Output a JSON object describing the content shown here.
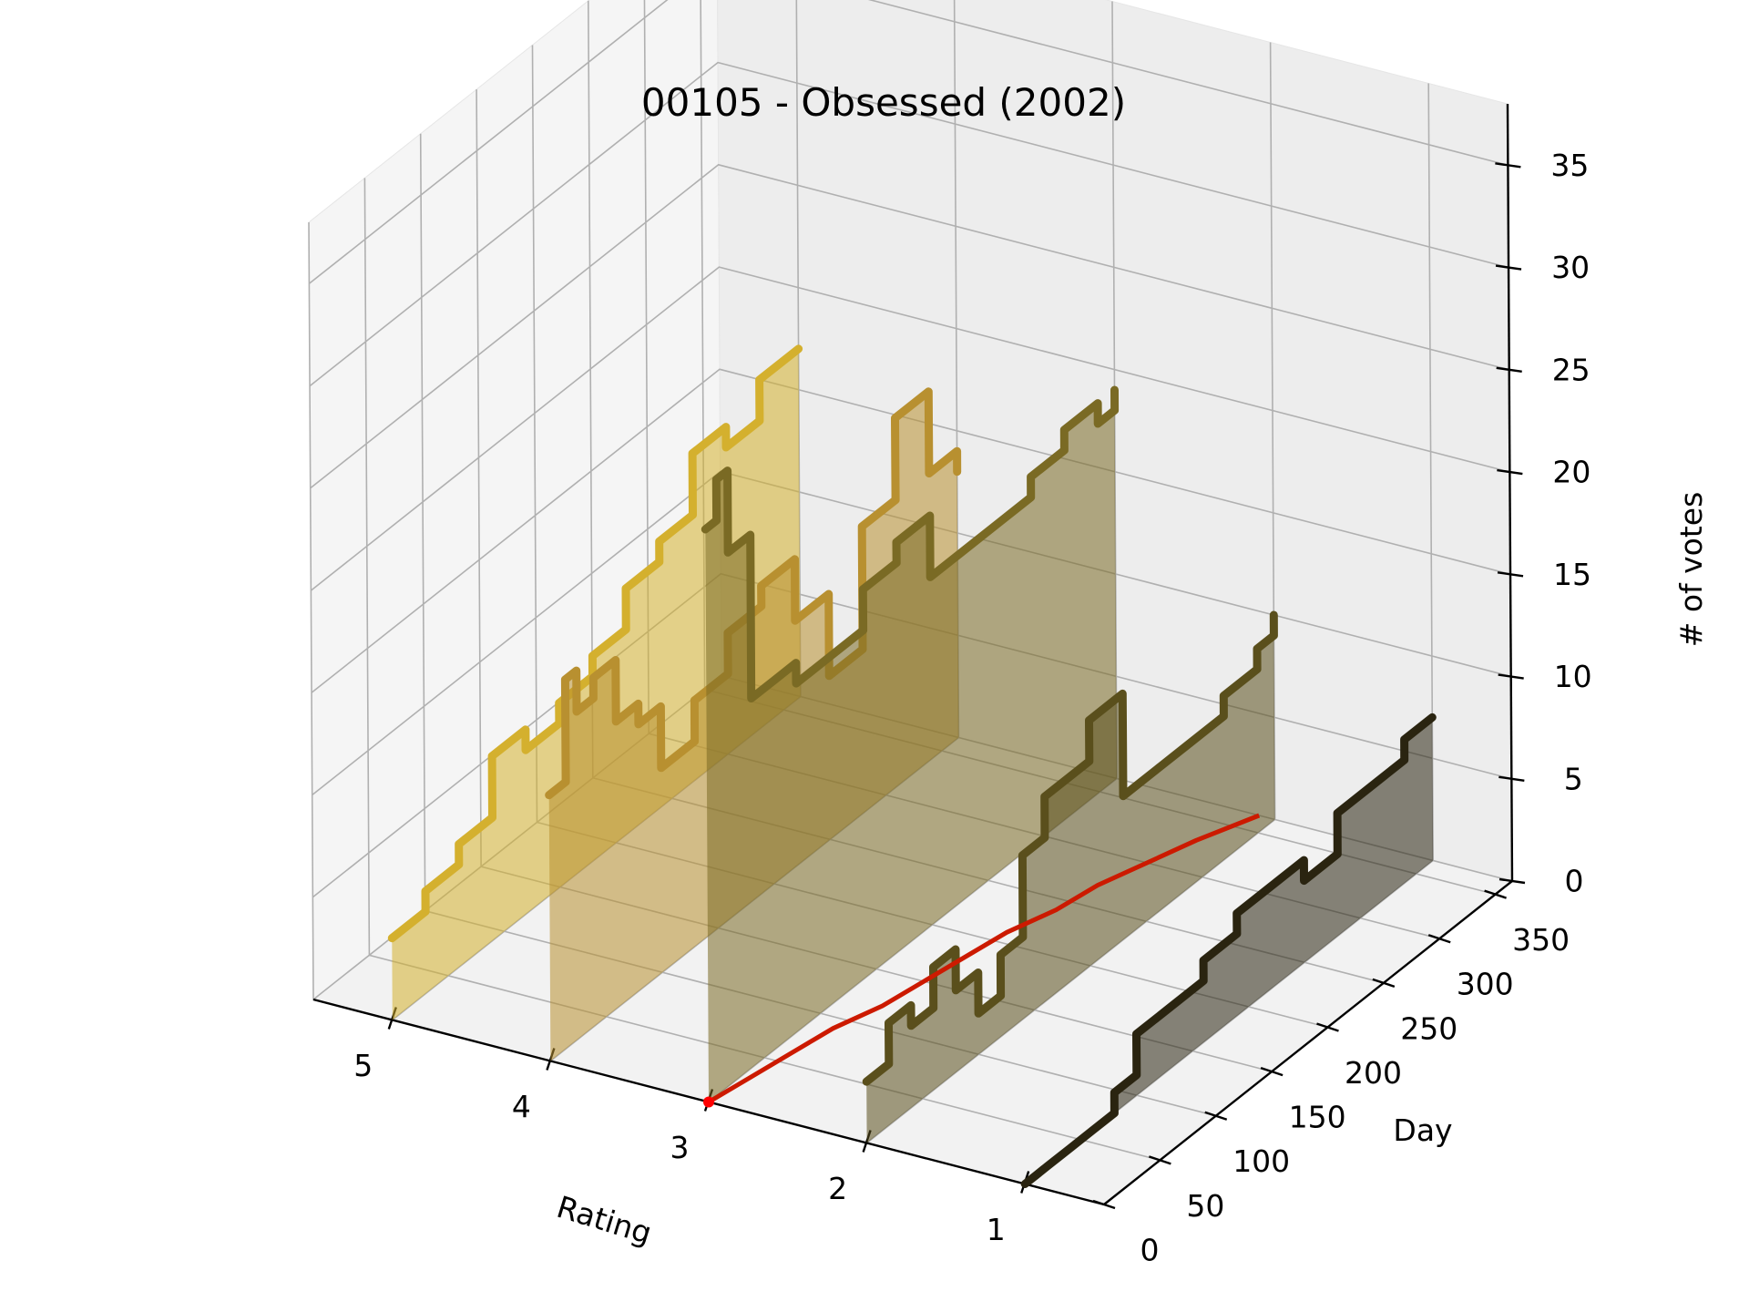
{
  "chart_data": {
    "type": "3d-line-area",
    "title": "00105 - Obsessed (2002)",
    "xlabel": "Rating",
    "ylabel": "Day",
    "zlabel": "# of votes",
    "x_ticks": [
      "5",
      "4",
      "3",
      "2",
      "1"
    ],
    "y_ticks": [
      "0",
      "50",
      "100",
      "150",
      "200",
      "250",
      "300",
      "350"
    ],
    "z_ticks": [
      "0",
      "5",
      "10",
      "15",
      "20",
      "25",
      "30",
      "35"
    ],
    "xlim": [
      0.5,
      5.5
    ],
    "ylim": [
      0,
      365
    ],
    "zlim": [
      0,
      38
    ],
    "grid": true,
    "series": [
      {
        "rating": 5,
        "color": "#d4b02e",
        "days": [
          0,
          30,
          60,
          90,
          120,
          150,
          180,
          210,
          240,
          270,
          300,
          330,
          365
        ],
        "votes": [
          4,
          5,
          6,
          9,
          8,
          9,
          10,
          12,
          13,
          16,
          15,
          17,
          17
        ]
      },
      {
        "rating": 4,
        "color": "#b89030",
        "days": [
          0,
          15,
          25,
          40,
          60,
          80,
          100,
          130,
          160,
          190,
          220,
          250,
          280,
          310,
          340,
          365
        ],
        "votes": [
          13,
          18,
          16,
          17,
          14,
          13,
          10,
          12,
          14,
          15,
          12,
          8,
          14,
          18,
          14,
          13
        ]
      },
      {
        "rating": 3,
        "color": "#7a6a24",
        "days": [
          0,
          10,
          20,
          40,
          60,
          80,
          110,
          140,
          170,
          200,
          230,
          260,
          290,
          320,
          350,
          365
        ],
        "votes": [
          28,
          30,
          26,
          18,
          18,
          17,
          17,
          19,
          20,
          17,
          17,
          17,
          18,
          19,
          18,
          19
        ]
      },
      {
        "rating": 2,
        "color": "#5a4f1c",
        "days": [
          0,
          20,
          40,
          60,
          80,
          100,
          120,
          140,
          160,
          180,
          200,
          230,
          260,
          290,
          320,
          350,
          365
        ],
        "votes": [
          3,
          5,
          4,
          6,
          4,
          2,
          4,
          8,
          10,
          10,
          12,
          7,
          7,
          7,
          8,
          9,
          10
        ]
      },
      {
        "rating": 1,
        "color": "#2a2410",
        "days": [
          0,
          10,
          20,
          40,
          60,
          80,
          100,
          130,
          160,
          190,
          220,
          250,
          280,
          310,
          340,
          365
        ],
        "votes": [
          0,
          0,
          0,
          0,
          0,
          1,
          3,
          3,
          4,
          5,
          5,
          4,
          6,
          6,
          7,
          7
        ]
      }
    ],
    "mean_line": {
      "color": "#cc1a00",
      "days": [
        0,
        30,
        60,
        90,
        120,
        150,
        180,
        210,
        240,
        270,
        300,
        330,
        365
      ],
      "rating": [
        3.0,
        2.95,
        2.9,
        2.85,
        2.75,
        2.7,
        2.65,
        2.6,
        2.5,
        2.45,
        2.35,
        2.25,
        2.1
      ]
    }
  }
}
